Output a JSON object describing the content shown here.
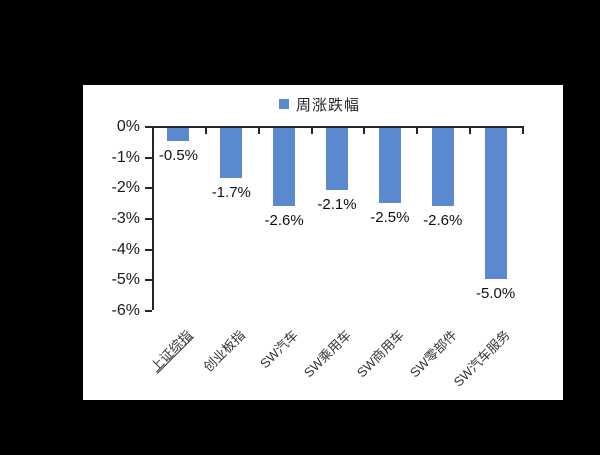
{
  "page": {
    "background_color": "#000000",
    "card_color": "#ffffff"
  },
  "legend": {
    "label": "周涨跌幅",
    "swatch_color": "#5A89CF"
  },
  "chart_data": {
    "type": "bar",
    "title": "",
    "series_name": "周涨跌幅",
    "categories": [
      "上证综指",
      "创业板指",
      "SW汽车",
      "SW乘用车",
      "SW商用车",
      "SW零部件",
      "SW汽车服务"
    ],
    "values": [
      -0.5,
      -1.7,
      -2.6,
      -2.1,
      -2.5,
      -2.6,
      -5.0
    ],
    "data_labels": [
      "-0.5%",
      "-1.7%",
      "-2.6%",
      "-2.1%",
      "-2.5%",
      "-2.6%",
      "-5.0%"
    ],
    "y_ticks": [
      "0%",
      "-1%",
      "-2%",
      "-3%",
      "-4%",
      "-5%",
      "-6%"
    ],
    "ylim": [
      -6,
      0
    ],
    "xlabel": "",
    "ylabel": "",
    "bar_color": "#5A89CF",
    "axis_color": "#262626",
    "grid": "off",
    "legend_position": "top",
    "category_label_rotation_deg": -45,
    "underlined_categories": [
      "上证综指"
    ]
  }
}
